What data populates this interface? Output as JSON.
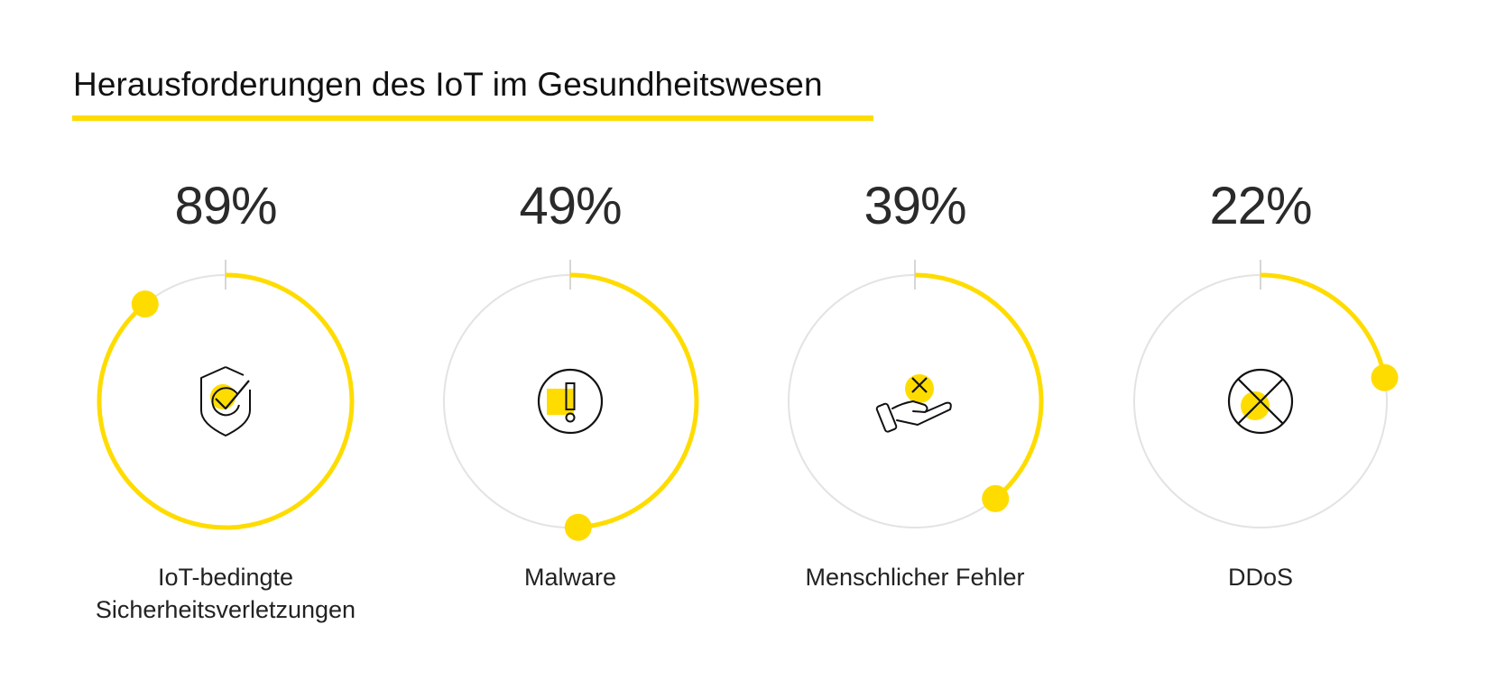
{
  "header": {
    "title": "Herausforderungen des IoT im Gesundheitswesen"
  },
  "colors": {
    "accent": "#FFDC00",
    "track": "#E3E3E3",
    "tick": "#D6D6D6",
    "text": "#111111",
    "icon_stroke": "#111111"
  },
  "stats": [
    {
      "value": 89,
      "value_label": "89%",
      "label_lines": [
        "IoT-bedingte",
        "Sicherheitsverletzungen"
      ],
      "icon": "shield-check-icon"
    },
    {
      "value": 49,
      "value_label": "49%",
      "label_lines": [
        "Malware"
      ],
      "icon": "alert-circle-icon"
    },
    {
      "value": 39,
      "value_label": "39%",
      "label_lines": [
        "Menschlicher Fehler"
      ],
      "icon": "hand-error-icon"
    },
    {
      "value": 22,
      "value_label": "22%",
      "label_lines": [
        "DDoS"
      ],
      "icon": "blocked-circle-icon"
    }
  ],
  "chart_data": {
    "type": "radial-progress",
    "title": "Herausforderungen des IoT im Gesundheitswesen",
    "categories": [
      "IoT-bedingte Sicherheitsverletzungen",
      "Malware",
      "Menschlicher Fehler",
      "DDoS"
    ],
    "values": [
      89,
      49,
      39,
      22
    ],
    "unit": "%",
    "range": [
      0,
      100
    ],
    "grid": false,
    "legend": "none"
  }
}
